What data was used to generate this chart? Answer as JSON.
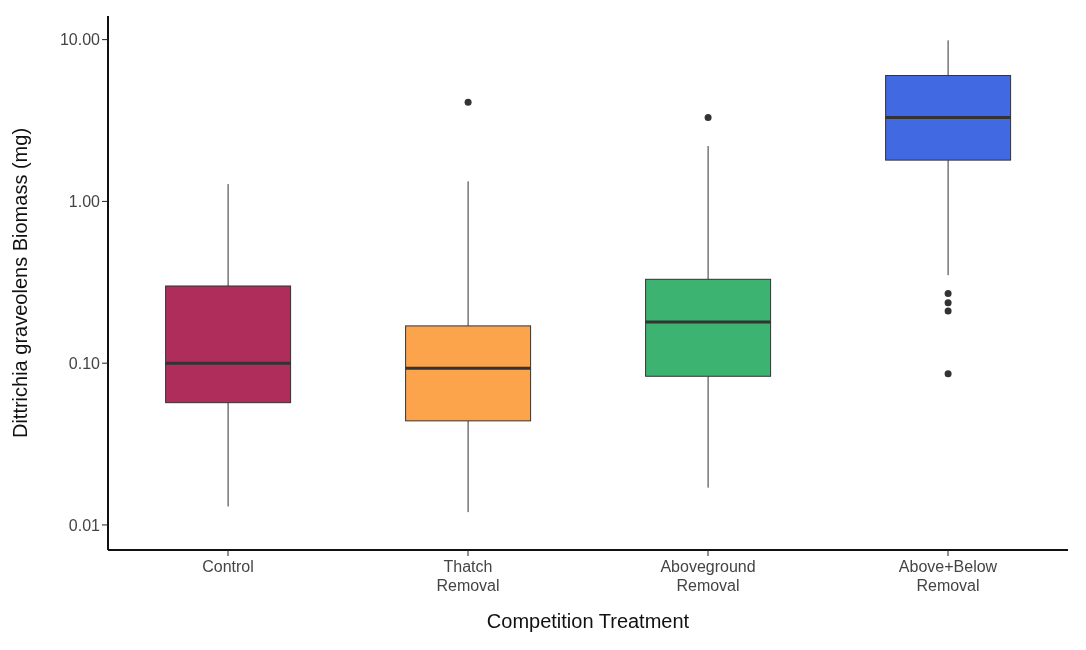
{
  "chart_data": {
    "type": "box",
    "xlabel": "Competition Treatment",
    "ylabel": "Dittrichia graveolens Biomass (mg)",
    "categories": [
      "Control",
      "Thatch Removal",
      "Aboveground Removal",
      "Above+Below Removal"
    ],
    "colors": [
      "#ae2d5a",
      "#fca44c",
      "#3cb371",
      "#4169e1"
    ],
    "boxes": [
      {
        "low": 0.013,
        "q1": 0.057,
        "median": 0.1,
        "q3": 0.3,
        "high": 1.28
      },
      {
        "low": 0.012,
        "q1": 0.044,
        "median": 0.093,
        "q3": 0.17,
        "high": 1.33,
        "outliers": [
          4.1
        ]
      },
      {
        "low": 0.017,
        "q1": 0.083,
        "median": 0.18,
        "q3": 0.33,
        "high": 2.2,
        "outliers": [
          3.3
        ]
      },
      {
        "low": 0.35,
        "q1": 1.8,
        "median": 3.3,
        "q3": 6.0,
        "high": 9.9,
        "outliers": [
          0.27,
          0.236,
          0.21,
          0.086
        ]
      }
    ],
    "log": true,
    "ylim": [
      0.007,
      14
    ],
    "yticks": [
      {
        "value": 0.01,
        "label": "0.01"
      },
      {
        "value": 0.1,
        "label": "0.10"
      },
      {
        "value": 1,
        "label": "1.00"
      },
      {
        "value": 10,
        "label": "10.00"
      }
    ],
    "grid": false,
    "marker": "circle"
  }
}
